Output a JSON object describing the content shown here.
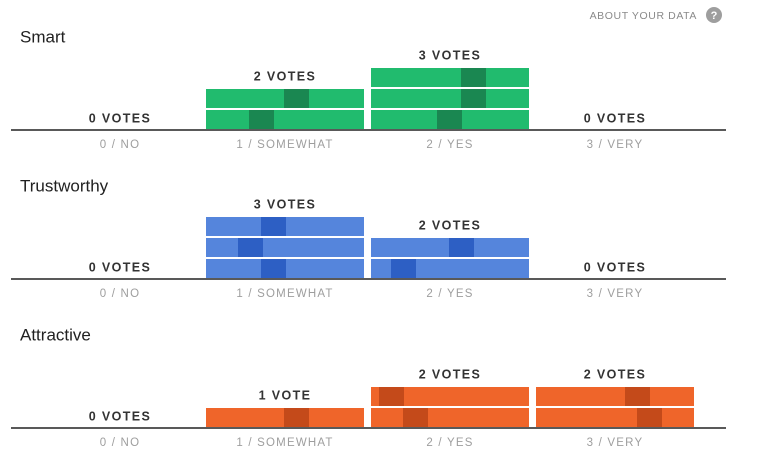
{
  "header": {
    "link": "ABOUT YOUR DATA",
    "help_icon": "?"
  },
  "chart_data": [
    {
      "type": "bar",
      "title": "Smart",
      "color": "#21bb6e",
      "accent": "#1a8751",
      "categories": [
        "0 / NO",
        "1 / SOMEWHAT",
        "2 / YES",
        "3 / VERY"
      ],
      "values": [
        0,
        2,
        3,
        0
      ],
      "value_labels": [
        "0 VOTES",
        "2 VOTES",
        "3 VOTES",
        "0 VOTES"
      ]
    },
    {
      "type": "bar",
      "title": "Trustworthy",
      "color": "#5585dc",
      "accent": "#2d5fc4",
      "categories": [
        "0 / NO",
        "1 / SOMEWHAT",
        "2 / YES",
        "3 / VERY"
      ],
      "values": [
        0,
        3,
        2,
        0
      ],
      "value_labels": [
        "0 VOTES",
        "3 VOTES",
        "2 VOTES",
        "0 VOTES"
      ]
    },
    {
      "type": "bar",
      "title": "Attractive",
      "color": "#ef652a",
      "accent": "#c44a1a",
      "categories": [
        "0 / NO",
        "1 / SOMEWHAT",
        "2 / YES",
        "3 / VERY"
      ],
      "values": [
        0,
        1,
        2,
        2
      ],
      "value_labels": [
        "0 VOTES",
        "1 VOTE",
        "2 VOTES",
        "2 VOTES"
      ]
    }
  ]
}
